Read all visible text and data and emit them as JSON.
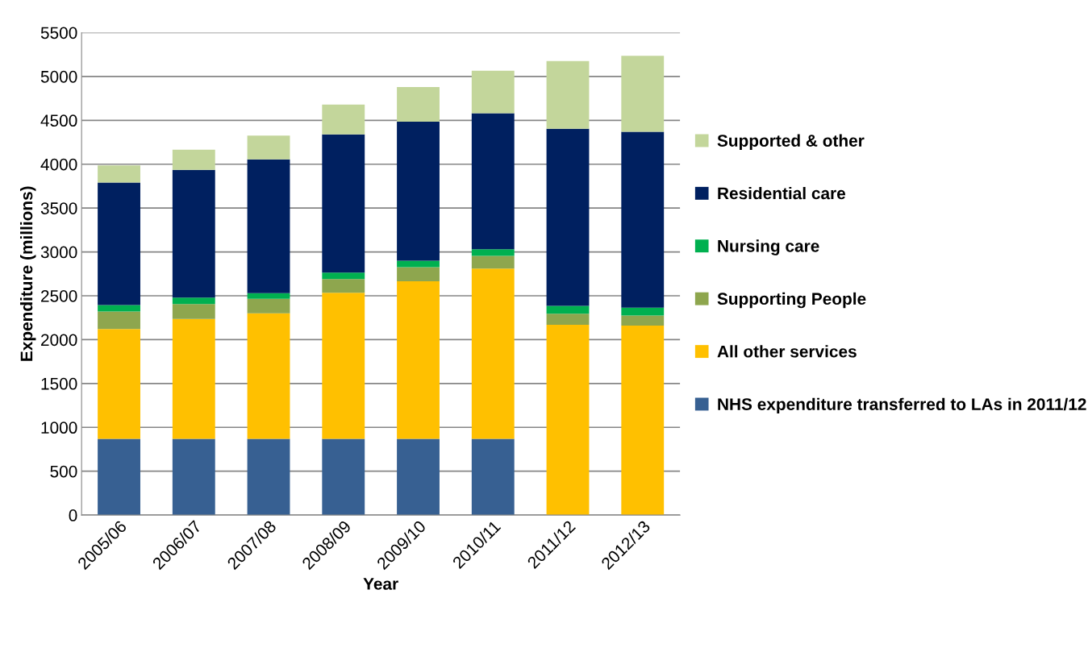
{
  "chart_data": {
    "type": "bar",
    "stacked": true,
    "xlabel": "Year",
    "ylabel": "Expenditure (millions)",
    "categories": [
      "2005/06",
      "2006/07",
      "2007/08",
      "2008/09",
      "2009/10",
      "2010/11",
      "2011/12",
      "2012/13"
    ],
    "series": [
      {
        "name": "NHS expenditure transferred to LAs in 2011/12",
        "color": "#376092",
        "values": [
          870,
          870,
          870,
          870,
          870,
          870,
          0,
          0
        ]
      },
      {
        "name": "All other services",
        "color": "#ffc000",
        "values": [
          1250,
          1365,
          1430,
          1665,
          1795,
          1940,
          2170,
          2160
        ]
      },
      {
        "name": "Supporting People",
        "color": "#8ea64e",
        "values": [
          200,
          170,
          165,
          155,
          160,
          145,
          125,
          115
        ]
      },
      {
        "name": "Nursing care",
        "color": "#00b050",
        "values": [
          75,
          75,
          65,
          75,
          75,
          75,
          90,
          90
        ]
      },
      {
        "name": "Residential care",
        "color": "#002060",
        "values": [
          1395,
          1455,
          1525,
          1575,
          1585,
          1550,
          2020,
          2005
        ]
      },
      {
        "name": "Supported & other",
        "color": "#c3d69b",
        "values": [
          195,
          230,
          270,
          340,
          395,
          485,
          770,
          865
        ]
      }
    ],
    "ylim": [
      0,
      5500
    ],
    "yticks": [
      0,
      500,
      1000,
      1500,
      2000,
      2500,
      3000,
      3500,
      4000,
      4500,
      5000,
      5500
    ],
    "grid": "y",
    "legend": "right"
  }
}
